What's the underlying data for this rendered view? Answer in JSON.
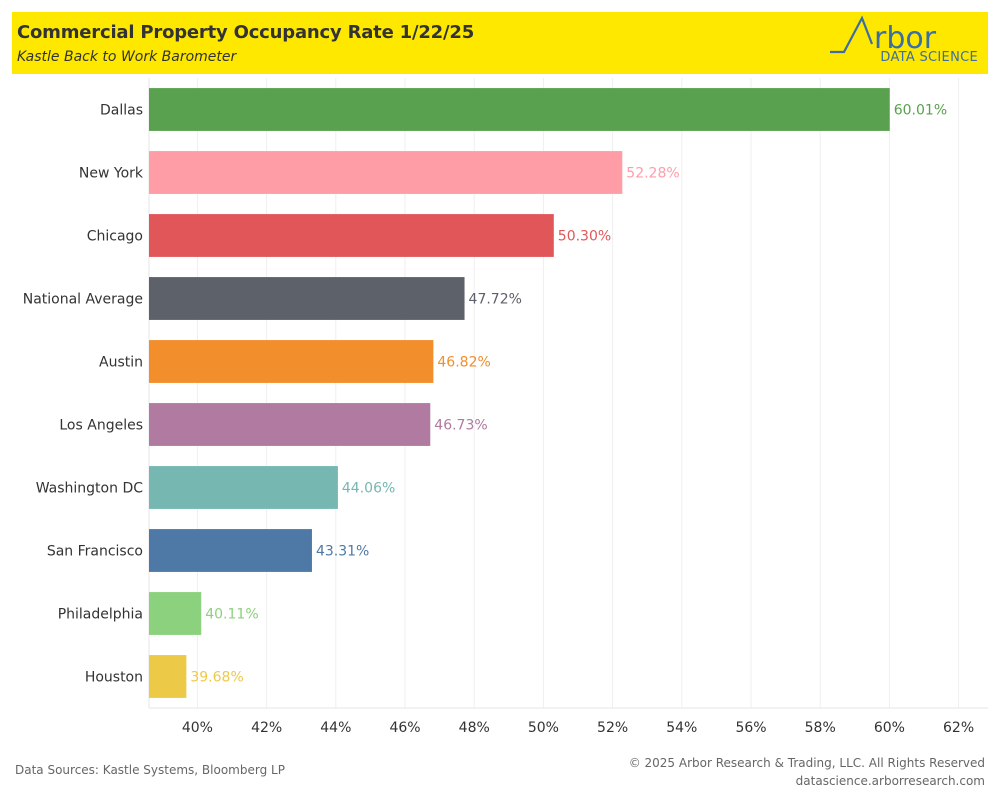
{
  "header": {
    "title": "Commercial Property Occupancy Rate 1/22/25",
    "subtitle": "Kastle Back to Work Barometer",
    "logo_name": "Arbor",
    "logo_tagline": "DATA SCIENCE",
    "background_color": "#ffe800"
  },
  "footer": {
    "sources": "Data Sources: Kastle Systems, Bloomberg LP",
    "copyright": "© 2025 Arbor Research & Trading, LLC. All Rights Reserved",
    "website": "datascience.arborresearch.com"
  },
  "chart_data": {
    "type": "bar",
    "orientation": "horizontal",
    "title": "Commercial Property Occupancy Rate 1/22/25",
    "subtitle": "Kastle Back to Work Barometer",
    "xlabel": "",
    "ylabel": "",
    "categories": [
      "Dallas",
      "New York",
      "Chicago",
      "National Average",
      "Austin",
      "Los Angeles",
      "Washington DC",
      "San Francisco",
      "Philadelphia",
      "Houston"
    ],
    "values": [
      60.01,
      52.28,
      50.3,
      47.72,
      46.82,
      46.73,
      44.06,
      43.31,
      40.11,
      39.68
    ],
    "labels": [
      "60.01%",
      "52.28%",
      "50.30%",
      "47.72%",
      "46.82%",
      "46.73%",
      "44.06%",
      "43.31%",
      "40.11%",
      "39.68%"
    ],
    "colors": [
      "#59a14f",
      "#ff9da7",
      "#e15759",
      "#5d6169",
      "#f28e2b",
      "#b07aa1",
      "#76b7b2",
      "#4e79a7",
      "#8cd17d",
      "#edc948"
    ],
    "xlim": [
      38.6,
      62.85
    ],
    "x_ticks": [
      40,
      42,
      44,
      46,
      48,
      50,
      52,
      54,
      56,
      58,
      60,
      62
    ],
    "x_tick_labels": [
      "40%",
      "42%",
      "44%",
      "46%",
      "48%",
      "50%",
      "52%",
      "54%",
      "56%",
      "58%",
      "60%",
      "62%"
    ],
    "grid": "vertical",
    "legend": "none"
  }
}
